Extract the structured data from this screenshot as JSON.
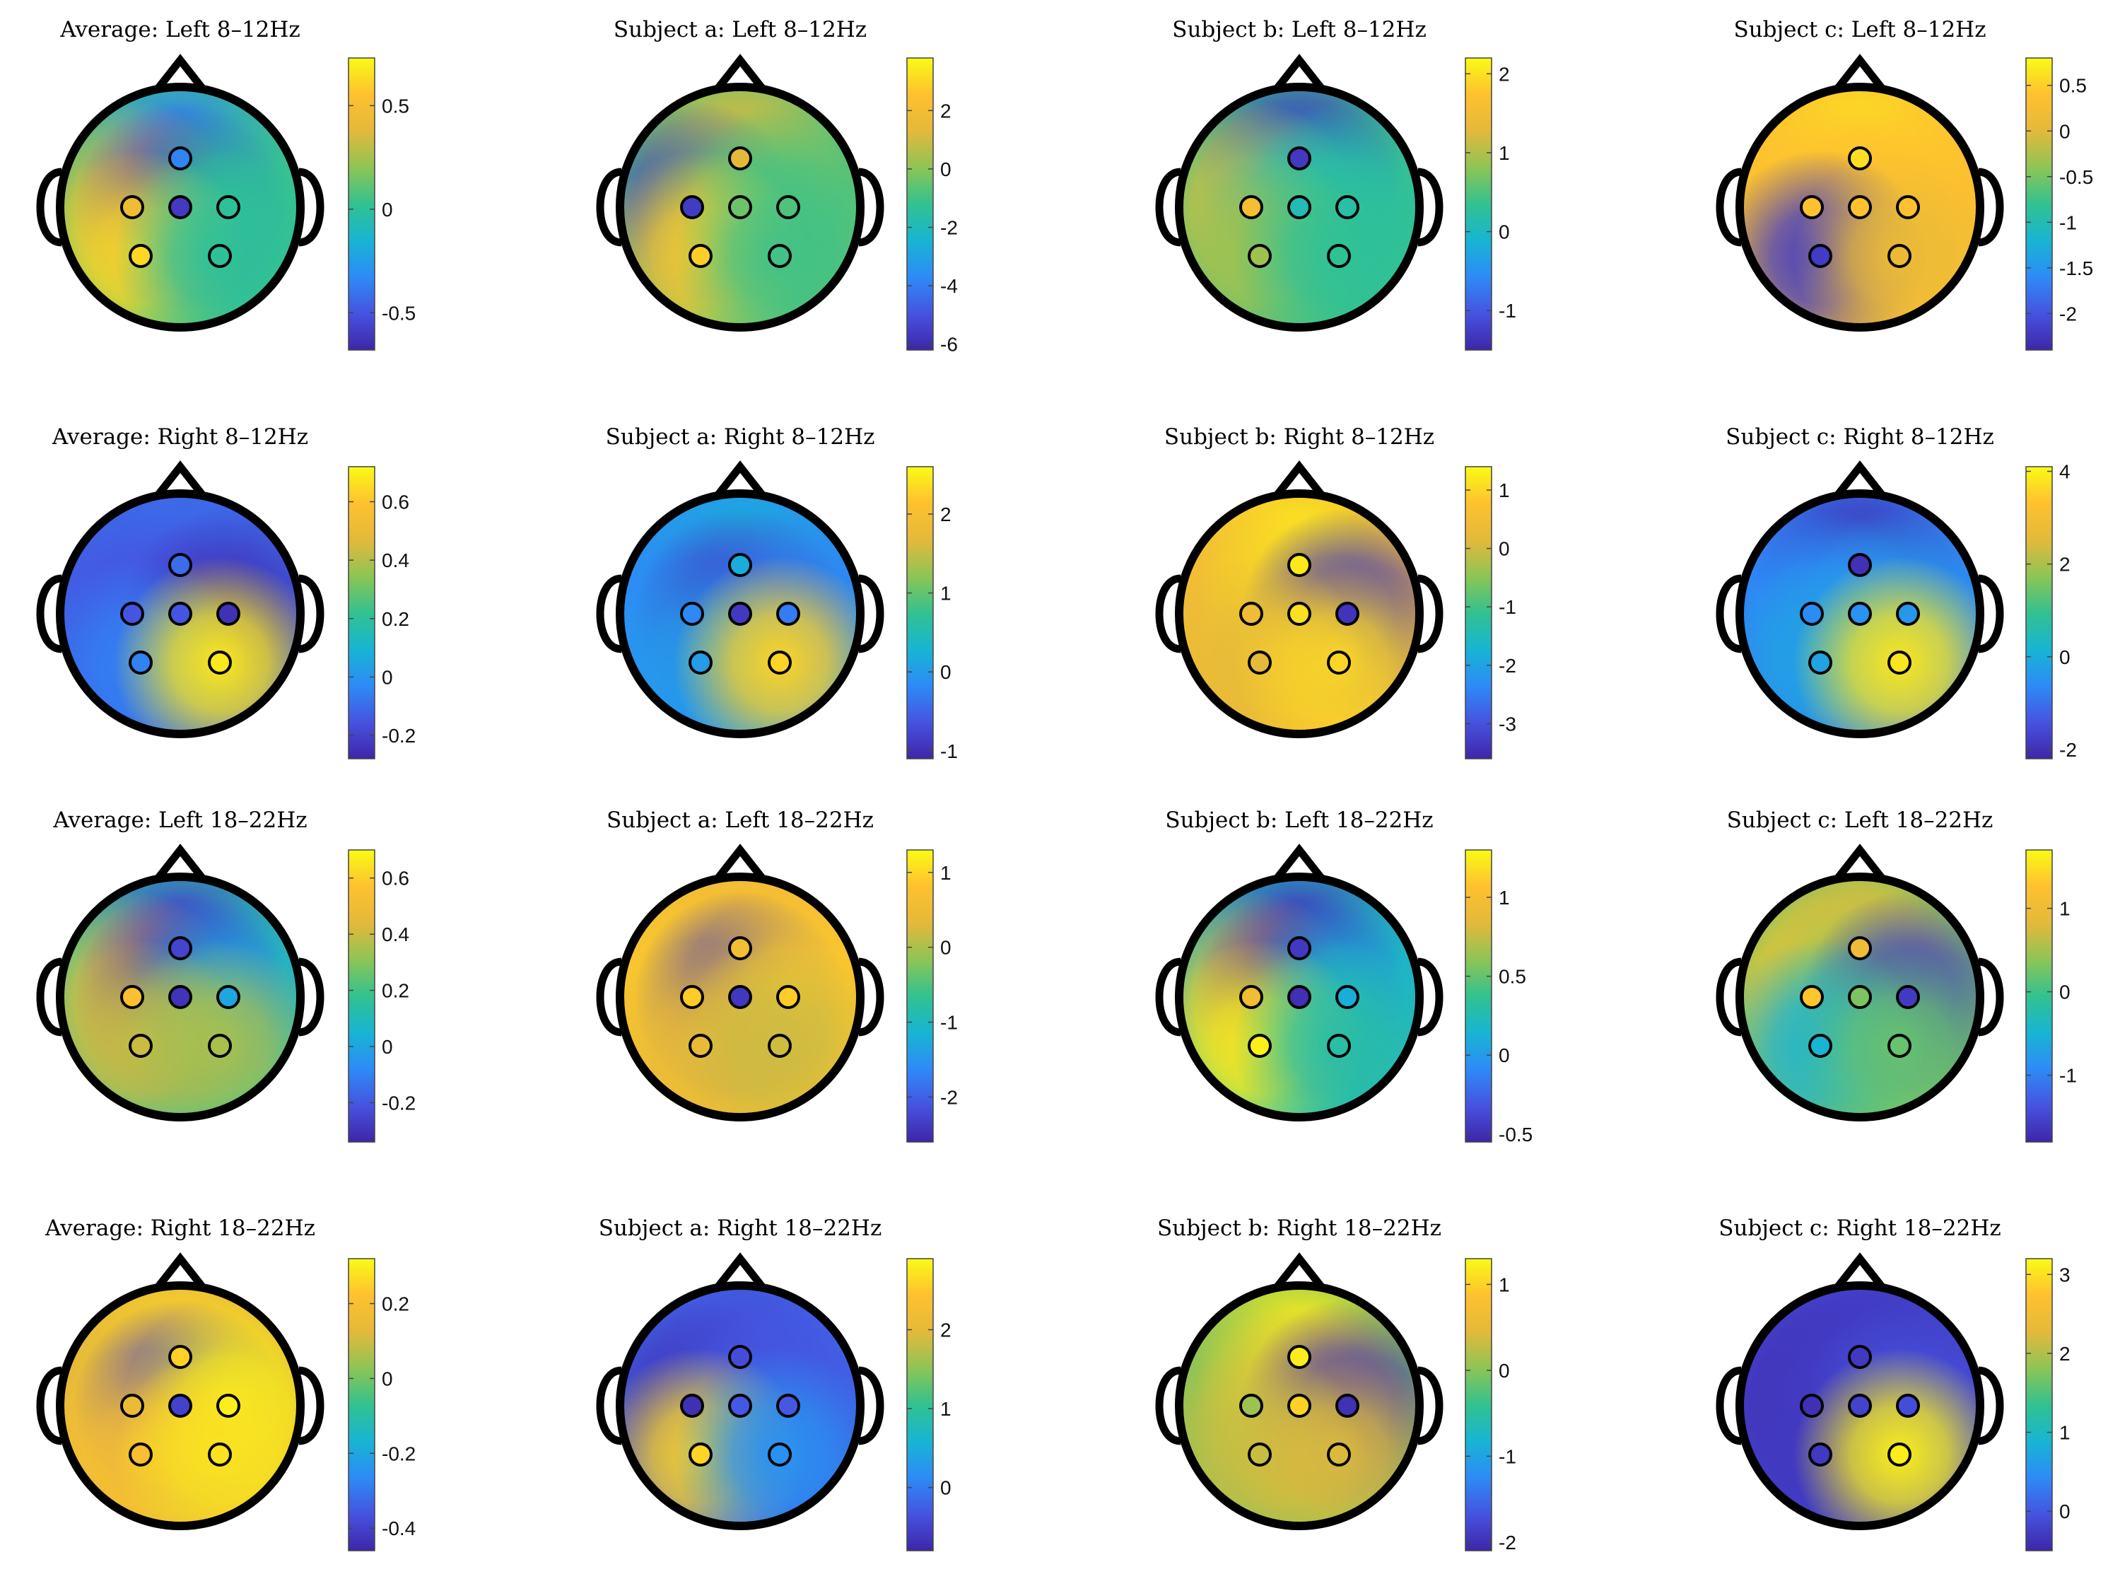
{
  "figure": {
    "description_free": true
  },
  "colormap": [
    "#3e26a8",
    "#4653e0",
    "#2d8bf7",
    "#17b5d2",
    "#32c28f",
    "#8ec455",
    "#e4b93a",
    "#fec12f",
    "#f9fb15"
  ],
  "electrode_names": [
    "front",
    "center-left",
    "center",
    "center-right",
    "back-left",
    "back-right"
  ],
  "chart_data": [
    {
      "type": "heatmap",
      "title": "Average: Left 8–12Hz",
      "clim": [
        -0.68,
        0.73
      ],
      "ticks": [
        -0.5,
        0,
        0.5
      ],
      "tick_labels": [
        "-0.5",
        "0",
        "0.5"
      ],
      "electrode_values": [
        -0.35,
        0.45,
        -0.6,
        0.0,
        0.62,
        0.0
      ],
      "baseline": 0.05
    },
    {
      "type": "heatmap",
      "title": "Subject a: Left 8–12Hz",
      "clim": [
        -6.2,
        3.8
      ],
      "ticks": [
        -6,
        -4,
        -2,
        0,
        2
      ],
      "tick_labels": [
        "-6",
        "-4",
        "-2",
        "0",
        "2"
      ],
      "electrode_values": [
        1.3,
        -5.6,
        -0.4,
        -0.8,
        2.8,
        -1.0
      ],
      "baseline": -0.6
    },
    {
      "type": "heatmap",
      "title": "Subject b: Left 8–12Hz",
      "clim": [
        -1.5,
        2.2
      ],
      "ticks": [
        -1,
        0,
        1,
        2
      ],
      "tick_labels": [
        "-1",
        "0",
        "1",
        "2"
      ],
      "electrode_values": [
        -1.3,
        1.6,
        0.1,
        0.2,
        0.9,
        0.3
      ],
      "baseline": 0.4
    },
    {
      "type": "heatmap",
      "title": "Subject c: Left 8–12Hz",
      "clim": [
        -2.4,
        0.8
      ],
      "ticks": [
        -2,
        -1.5,
        -1,
        -0.5,
        0,
        0.5
      ],
      "tick_labels": [
        "-2",
        "-1.5",
        "-1",
        "-0.5",
        "0",
        "0.5"
      ],
      "electrode_values": [
        0.6,
        0.4,
        0.4,
        0.4,
        -2.2,
        0.1
      ],
      "baseline": 0.35
    },
    {
      "type": "heatmap",
      "title": "Average: Right 8–12Hz",
      "clim": [
        -0.28,
        0.72
      ],
      "ticks": [
        -0.2,
        0,
        0.2,
        0.4,
        0.6
      ],
      "tick_labels": [
        "-0.2",
        "0",
        "0.2",
        "0.4",
        "0.6"
      ],
      "electrode_values": [
        -0.1,
        -0.15,
        -0.15,
        -0.25,
        -0.05,
        0.68
      ],
      "baseline": -0.12
    },
    {
      "type": "heatmap",
      "title": "Subject a: Right 8–12Hz",
      "clim": [
        -1.1,
        2.6
      ],
      "ticks": [
        -1,
        0,
        1,
        2
      ],
      "tick_labels": [
        "-1",
        "0",
        "1",
        "2"
      ],
      "electrode_values": [
        0.2,
        -0.2,
        -0.9,
        -0.3,
        0.0,
        2.3
      ],
      "baseline": -0.1
    },
    {
      "type": "heatmap",
      "title": "Subject b: Right 8–12Hz",
      "clim": [
        -3.6,
        1.4
      ],
      "ticks": [
        -3,
        -2,
        -1,
        0,
        1
      ],
      "tick_labels": [
        "-3",
        "-2",
        "-1",
        "0",
        "1"
      ],
      "electrode_values": [
        1.2,
        0.4,
        1.1,
        -3.4,
        0.2,
        1.0
      ],
      "baseline": 0.55
    },
    {
      "type": "heatmap",
      "title": "Subject c: Right 8–12Hz",
      "clim": [
        -2.2,
        4.1
      ],
      "ticks": [
        -2,
        0,
        2,
        4
      ],
      "tick_labels": [
        "-2",
        "0",
        "2",
        "4"
      ],
      "electrode_values": [
        -2.0,
        -0.6,
        -0.5,
        -0.4,
        -0.2,
        3.8
      ],
      "baseline": -0.8
    },
    {
      "type": "heatmap",
      "title": "Average: Left 18–22Hz",
      "clim": [
        -0.34,
        0.7
      ],
      "ticks": [
        -0.2,
        0,
        0.2,
        0.4,
        0.6
      ],
      "tick_labels": [
        "-0.2",
        "0",
        "0.2",
        "0.4",
        "0.6"
      ],
      "electrode_values": [
        -0.25,
        0.55,
        -0.3,
        0.0,
        0.4,
        0.35
      ],
      "baseline": 0.15
    },
    {
      "type": "heatmap",
      "title": "Subject a: Left 18–22Hz",
      "clim": [
        -2.6,
        1.3
      ],
      "ticks": [
        -2,
        -1,
        0,
        1
      ],
      "tick_labels": [
        "-2",
        "-1",
        "0",
        "1"
      ],
      "electrode_values": [
        0.6,
        0.9,
        -2.4,
        0.9,
        0.4,
        0.2
      ],
      "baseline": 0.6
    },
    {
      "type": "heatmap",
      "title": "Subject b: Left 18–22Hz",
      "clim": [
        -0.55,
        1.3
      ],
      "ticks": [
        -0.5,
        0,
        0.5,
        1
      ],
      "tick_labels": [
        "-0.5",
        "0",
        "0.5",
        "1"
      ],
      "electrode_values": [
        -0.45,
        0.95,
        -0.5,
        0.1,
        1.25,
        0.3
      ],
      "baseline": 0.25
    },
    {
      "type": "heatmap",
      "title": "Subject c: Left 18–22Hz",
      "clim": [
        -1.8,
        1.7
      ],
      "ticks": [
        -1,
        0,
        1
      ],
      "tick_labels": [
        "-1",
        "0",
        "1"
      ],
      "electrode_values": [
        1.0,
        1.3,
        0.3,
        -1.6,
        -0.5,
        0.2
      ],
      "baseline": 0.3
    },
    {
      "type": "heatmap",
      "title": "Average: Right 18–22Hz",
      "clim": [
        -0.46,
        0.32
      ],
      "ticks": [
        -0.4,
        -0.2,
        0,
        0.2
      ],
      "tick_labels": [
        "-0.4",
        "-0.2",
        "0",
        "0.2"
      ],
      "electrode_values": [
        0.25,
        0.15,
        -0.4,
        0.3,
        0.2,
        0.28
      ],
      "baseline": 0.12
    },
    {
      "type": "heatmap",
      "title": "Subject a: Right 18–22Hz",
      "clim": [
        -0.8,
        2.9
      ],
      "ticks": [
        0,
        1,
        2
      ],
      "tick_labels": [
        "0",
        "1",
        "2"
      ],
      "electrode_values": [
        -0.4,
        -0.7,
        -0.3,
        -0.3,
        2.6,
        0.2
      ],
      "baseline": -0.2
    },
    {
      "type": "heatmap",
      "title": "Subject b: Right 18–22Hz",
      "clim": [
        -2.1,
        1.3
      ],
      "ticks": [
        -2,
        -1,
        0,
        1
      ],
      "tick_labels": [
        "-2",
        "-1",
        "0",
        "1"
      ],
      "electrode_values": [
        1.2,
        0.1,
        1.0,
        -2.0,
        0.3,
        0.4
      ],
      "baseline": 0.0
    },
    {
      "type": "heatmap",
      "title": "Subject c: Right 18–22Hz",
      "clim": [
        -0.5,
        3.2
      ],
      "ticks": [
        0,
        1,
        2,
        3
      ],
      "tick_labels": [
        "0",
        "1",
        "2",
        "3"
      ],
      "electrode_values": [
        -0.3,
        -0.4,
        -0.2,
        -0.1,
        -0.3,
        3.1
      ],
      "baseline": -0.2
    }
  ]
}
